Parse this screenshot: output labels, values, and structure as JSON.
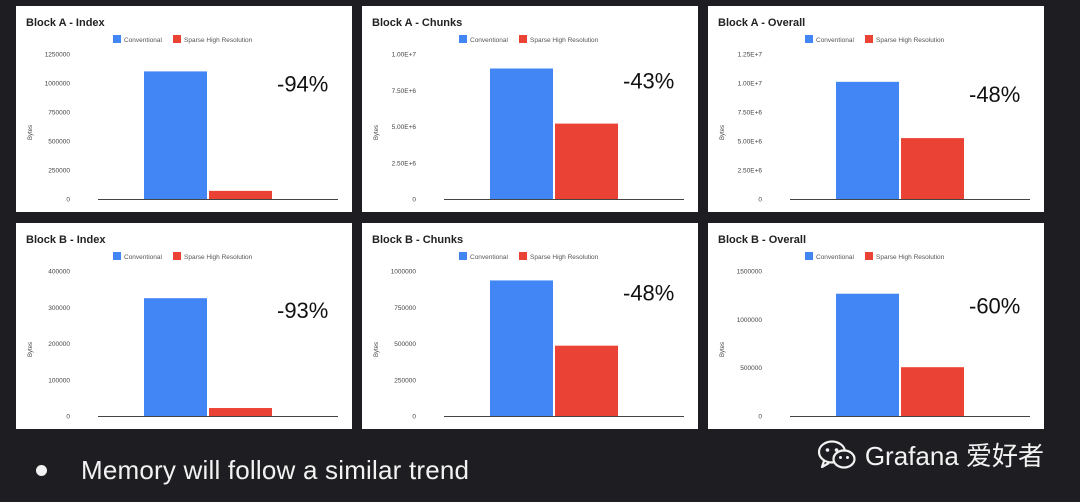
{
  "legend_colors": {
    "conventional": "#4285f4",
    "sparse": "#ea4335"
  },
  "chart_data": [
    {
      "type": "bar",
      "title": "Block A - Index",
      "ylabel": "Bytes",
      "series": [
        {
          "name": "Conventional",
          "values": [
            1100000
          ]
        },
        {
          "name": "Sparse High Resolution",
          "values": [
            70000
          ]
        }
      ],
      "ylim": [
        0,
        1250000
      ],
      "yticks": [
        "0",
        "250000",
        "500000",
        "750000",
        "1000000",
        "1250000"
      ],
      "annotation": "-94%"
    },
    {
      "type": "bar",
      "title": "Block A - Chunks",
      "ylabel": "Bytes",
      "series": [
        {
          "name": "Conventional",
          "values": [
            9000000
          ]
        },
        {
          "name": "Sparse High Resolution",
          "values": [
            5200000
          ]
        }
      ],
      "ylim": [
        0,
        10000000
      ],
      "yticks": [
        "0",
        "2.50E+6",
        "5.00E+6",
        "7.50E+6",
        "1.00E+7"
      ],
      "annotation": "-43%"
    },
    {
      "type": "bar",
      "title": "Block A - Overall",
      "ylabel": "Bytes",
      "series": [
        {
          "name": "Conventional",
          "values": [
            10100000
          ]
        },
        {
          "name": "Sparse High Resolution",
          "values": [
            5250000
          ]
        }
      ],
      "ylim": [
        0,
        12500000
      ],
      "yticks": [
        "0",
        "2.50E+6",
        "5.00E+6",
        "7.50E+6",
        "1.00E+7",
        "1.25E+7"
      ],
      "annotation": "-48%"
    },
    {
      "type": "bar",
      "title": "Block B - Index",
      "ylabel": "Bytes",
      "series": [
        {
          "name": "Conventional",
          "values": [
            325000
          ]
        },
        {
          "name": "Sparse High Resolution",
          "values": [
            22000
          ]
        }
      ],
      "ylim": [
        0,
        400000
      ],
      "yticks": [
        "0",
        "100000",
        "200000",
        "300000",
        "400000"
      ],
      "annotation": "-93%"
    },
    {
      "type": "bar",
      "title": "Block B - Chunks",
      "ylabel": "Bytes",
      "series": [
        {
          "name": "Conventional",
          "values": [
            935000
          ]
        },
        {
          "name": "Sparse High Resolution",
          "values": [
            485000
          ]
        }
      ],
      "ylim": [
        0,
        1000000
      ],
      "yticks": [
        "0",
        "250000",
        "500000",
        "750000",
        "1000000"
      ],
      "annotation": "-48%"
    },
    {
      "type": "bar",
      "title": "Block B - Overall",
      "ylabel": "Bytes",
      "series": [
        {
          "name": "Conventional",
          "values": [
            1265000
          ]
        },
        {
          "name": "Sparse High Resolution",
          "values": [
            505000
          ]
        }
      ],
      "ylim": [
        0,
        1500000
      ],
      "yticks": [
        "0",
        "500000",
        "1000000",
        "1500000"
      ],
      "annotation": "-60%"
    }
  ],
  "bullet": {
    "text": "Memory will follow a similar trend"
  },
  "watermark": {
    "text": "Grafana 爱好者",
    "icon": "wechat-icon"
  }
}
